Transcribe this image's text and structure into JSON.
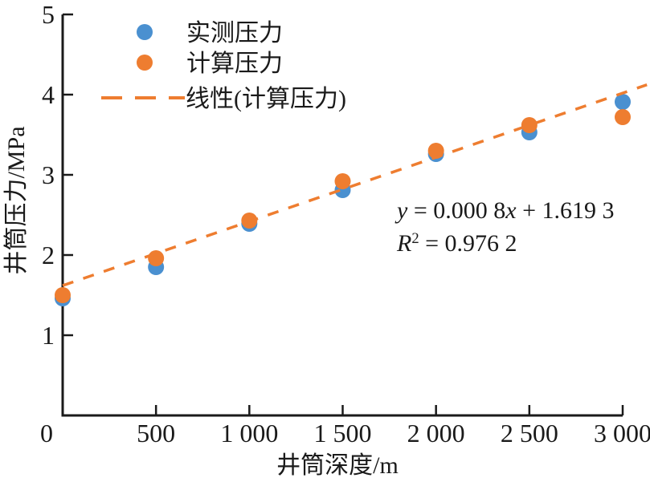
{
  "figure": {
    "background": "#ffffff",
    "text_color": "#1a1a1a"
  },
  "chart_data": {
    "type": "scatter",
    "title": "",
    "xlabel": "井筒深度/m",
    "ylabel": "井筒压力/MPa",
    "xlim": [
      0,
      3000
    ],
    "ylim": [
      0,
      5
    ],
    "grid": false,
    "legend_position": "top-left",
    "x_axis": {
      "tick_values": [
        0,
        500,
        1000,
        1500,
        2000,
        2500,
        3000
      ],
      "tick_labels": [
        "0",
        "500",
        "1 000",
        "1 500",
        "2 000",
        "2 500",
        "3 000"
      ]
    },
    "y_axis": {
      "tick_values": [
        1,
        2,
        3,
        4,
        5
      ],
      "tick_labels": [
        "1",
        "2",
        "3",
        "4",
        "5"
      ]
    },
    "x": [
      0,
      500,
      1000,
      1500,
      2000,
      2500,
      3000
    ],
    "series": [
      {
        "name": "实测压力",
        "color": "#4a90d0",
        "marker": "circle",
        "values": [
          1.46,
          1.85,
          2.39,
          2.81,
          3.26,
          3.53,
          3.91
        ]
      },
      {
        "name": "计算压力",
        "color": "#ee7d30",
        "marker": "circle",
        "values": [
          1.5,
          1.96,
          2.43,
          2.92,
          3.3,
          3.62,
          3.72
        ]
      }
    ],
    "trendline": {
      "name": "线性(计算压力)",
      "color": "#ee7d30",
      "style": "dashed",
      "slope": 0.0008,
      "intercept": 1.6193,
      "x_range": [
        0,
        3130
      ],
      "equation": "y = 0.000 8x + 1.619 3",
      "r_squared": "R² = 0.976 2"
    },
    "annotation": {
      "line1": [
        {
          "t": "y",
          "style": "italic"
        },
        {
          "t": " = 0.000 8",
          "style": "normal"
        },
        {
          "t": "x",
          "style": "italic"
        },
        {
          "t": " + 1.619 3",
          "style": "normal"
        }
      ],
      "line2": [
        {
          "t": "R",
          "style": "italic"
        },
        {
          "t": "2",
          "style": "sup"
        },
        {
          "t": " = 0.976 2",
          "style": "normal"
        }
      ]
    }
  }
}
